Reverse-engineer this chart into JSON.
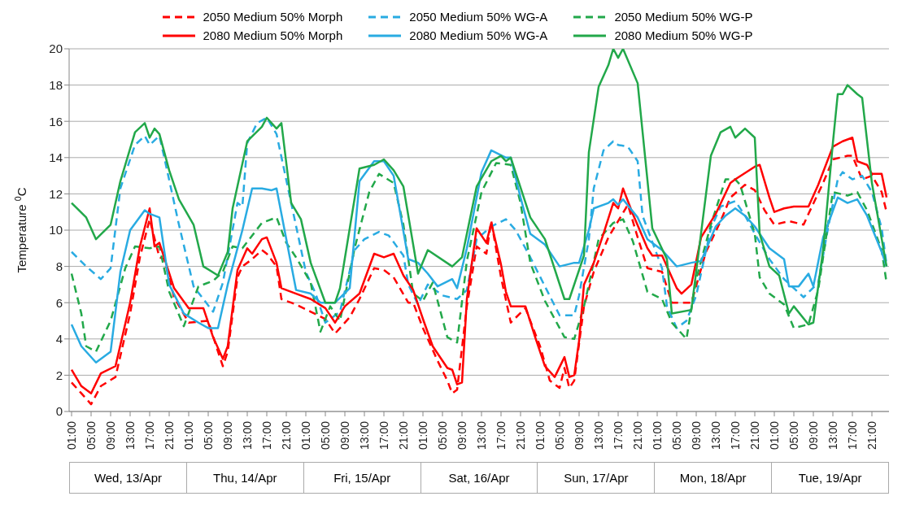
{
  "chart_data": {
    "type": "line",
    "ylabel": "Temperature $^{0}$C",
    "ylim": [
      0,
      20
    ],
    "yticks": [
      0,
      2,
      4,
      6,
      8,
      10,
      12,
      14,
      16,
      18,
      20
    ],
    "xlim": [
      "--04-13T00:30",
      "--04-20T00:30"
    ],
    "xticks": [
      {
        "value": "--04-13T01:00",
        "label": "01:00"
      },
      {
        "value": "--04-13T05:00",
        "label": "05:00"
      },
      {
        "value": "--04-13T09:00",
        "label": "09:00"
      },
      {
        "value": "--04-13T13:00",
        "label": "13:00"
      },
      {
        "value": "--04-13T17:00",
        "label": "17:00"
      },
      {
        "value": "--04-13T21:00",
        "label": "21:00"
      },
      {
        "value": "--04-14T01:00",
        "label": "01:00"
      },
      {
        "value": "--04-14T05:00",
        "label": "05:00"
      },
      {
        "value": "--04-14T09:00",
        "label": "09:00"
      },
      {
        "value": "--04-14T13:00",
        "label": "13:00"
      },
      {
        "value": "--04-14T17:00",
        "label": "17:00"
      },
      {
        "value": "--04-14T21:00",
        "label": "21:00"
      },
      {
        "value": "--04-15T01:00",
        "label": "01:00"
      },
      {
        "value": "--04-15T05:00",
        "label": "05:00"
      },
      {
        "value": "--04-15T09:00",
        "label": "09:00"
      },
      {
        "value": "--04-15T13:00",
        "label": "13:00"
      },
      {
        "value": "--04-15T17:00",
        "label": "17:00"
      },
      {
        "value": "--04-15T21:00",
        "label": "21:00"
      },
      {
        "value": "--04-16T01:00",
        "label": "01:00"
      },
      {
        "value": "--04-16T05:00",
        "label": "05:00"
      },
      {
        "value": "--04-16T09:00",
        "label": "09:00"
      },
      {
        "value": "--04-16T13:00",
        "label": "13:00"
      },
      {
        "value": "--04-16T17:00",
        "label": "17:00"
      },
      {
        "value": "--04-16T21:00",
        "label": "21:00"
      },
      {
        "value": "--04-17T01:00",
        "label": "01:00"
      },
      {
        "value": "--04-17T05:00",
        "label": "05:00"
      },
      {
        "value": "--04-17T09:00",
        "label": "09:00"
      },
      {
        "value": "--04-17T13:00",
        "label": "13:00"
      },
      {
        "value": "--04-17T17:00",
        "label": "17:00"
      },
      {
        "value": "--04-17T21:00",
        "label": "21:00"
      },
      {
        "value": "--04-18T01:00",
        "label": "01:00"
      },
      {
        "value": "--04-18T05:00",
        "label": "05:00"
      },
      {
        "value": "--04-18T09:00",
        "label": "09:00"
      },
      {
        "value": "--04-18T13:00",
        "label": "13:00"
      },
      {
        "value": "--04-18T17:00",
        "label": "17:00"
      },
      {
        "value": "--04-18T21:00",
        "label": "21:00"
      },
      {
        "value": "--04-19T01:00",
        "label": "01:00"
      },
      {
        "value": "--04-19T05:00",
        "label": "05:00"
      },
      {
        "value": "--04-19T09:00",
        "label": "09:00"
      },
      {
        "value": "--04-19T13:00",
        "label": "13:00"
      },
      {
        "value": "--04-19T17:00",
        "label": "17:00"
      },
      {
        "value": "--04-19T21:00",
        "label": "21:00"
      }
    ],
    "annotations": [
      "Wed, 13/Apr",
      "Thu, 14/Apr",
      "Fri, 15/Apr",
      "Sat, 16/Apr",
      "Sun, 17/Apr",
      "Mon, 18/Apr",
      "Tue, 19/Apr"
    ],
    "grid": "y",
    "legend": "top",
    "marker": "none",
    "series": [
      {
        "name": "2050 Medium 50% Morph",
        "color": "#ff0000",
        "line_style": "dashed",
        "x": [
          "--04-13T01:00",
          "--04-13T03:00",
          "--04-13T05:00",
          "--04-13T07:00",
          "--04-13T10:00",
          "--04-13T13:00",
          "--04-13T15:00",
          "--04-13T17:00",
          "--04-13T19:00",
          "--04-13T20:00",
          "--04-13T22:00",
          "--04-14T01:00",
          "--04-14T05:00",
          "--04-14T07:00",
          "--04-14T08:00",
          "--04-14T09:00",
          "--04-14T11:00",
          "--04-14T12:00",
          "--04-14T14:00",
          "--04-14T16:00",
          "--04-14T17:00",
          "--04-14T19:00",
          "--04-14T20:00",
          "--04-14T23:00",
          "--04-15T02:00",
          "--04-15T05:00",
          "--04-15T07:00",
          "--04-15T10:00",
          "--04-15T12:00",
          "--04-15T15:00",
          "--04-15T17:00",
          "--04-15T19:00",
          "--04-15T22:00",
          "--04-15T23:00",
          "--04-16T01:00",
          "--04-16T04:00",
          "--04-16T06:00",
          "--04-16T07:00",
          "--04-16T08:00",
          "--04-16T10:00",
          "--04-16T12:00",
          "--04-16T14:00",
          "--04-16T15:00",
          "--04-16T17:00",
          "--04-16T19:00",
          "--04-16T22:00",
          "--04-17T01:00",
          "--04-17T03:00",
          "--04-17T05:00",
          "--04-17T06:00",
          "--04-17T07:00",
          "--04-17T08:00",
          "--04-17T10:00",
          "--04-17T12:00",
          "--04-17T15:00",
          "--04-17T17:00",
          "--04-17T19:00",
          "--04-17T21:00",
          "--04-17T23:00",
          "--04-18T02:00",
          "--04-18T04:00",
          "--04-18T06:00",
          "--04-18T08:00",
          "--04-18T11:00",
          "--04-18T14:00",
          "--04-18T16:00",
          "--04-18T19:00",
          "--04-18T21:00",
          "--04-18T23:00",
          "--04-19T01:00",
          "--04-19T04:00",
          "--04-19T07:00",
          "--04-19T08:00",
          "--04-19T11:00",
          "--04-19T13:00",
          "--04-19T16:00",
          "--04-19T17:00",
          "--04-19T19:00",
          "--04-19T21:00",
          "--04-19T23:00",
          "--04-20T00:00"
        ],
        "values": [
          1.6,
          1.0,
          0.4,
          1.4,
          1.9,
          5.4,
          8.5,
          10.6,
          8.5,
          8.4,
          6.3,
          4.9,
          5.0,
          3.3,
          2.5,
          3.3,
          7.4,
          8.0,
          8.4,
          8.9,
          8.7,
          8.0,
          6.2,
          5.9,
          5.5,
          5.1,
          4.3,
          5.2,
          6.2,
          7.9,
          7.8,
          7.4,
          6.0,
          6.0,
          4.6,
          2.8,
          1.7,
          1.0,
          1.2,
          5.8,
          9.1,
          8.7,
          10.5,
          7.4,
          4.9,
          5.7,
          3.6,
          1.7,
          1.3,
          2.4,
          1.3,
          1.7,
          5.8,
          7.7,
          9.6,
          10.5,
          11.4,
          9.6,
          7.9,
          7.7,
          6.0,
          6.0,
          6.0,
          8.8,
          10.5,
          11.8,
          12.5,
          12.2,
          11.1,
          10.3,
          10.5,
          10.3,
          10.9,
          12.6,
          13.9,
          14.1,
          14.1,
          12.8,
          13.0,
          12.1,
          11.0
        ]
      },
      {
        "name": "2050 Medium 50% WG-A",
        "color": "#29abe2",
        "line_style": "dashed",
        "x": [
          "--04-13T01:00",
          "--04-13T04:00",
          "--04-13T07:00",
          "--04-13T09:00",
          "--04-13T11:00",
          "--04-13T14:00",
          "--04-13T16:00",
          "--04-13T17:00",
          "--04-13T19:00",
          "--04-13T20:00",
          "--04-13T23:00",
          "--04-14T02:00",
          "--04-14T06:00",
          "--04-14T08:00",
          "--04-14T11:00",
          "--04-14T12:00",
          "--04-14T13:00",
          "--04-14T15:00",
          "--04-14T17:00",
          "--04-14T19:00",
          "--04-14T22:00",
          "--04-15T01:00",
          "--04-15T03:00",
          "--04-15T05:00",
          "--04-15T08:00",
          "--04-15T11:00",
          "--04-15T13:00",
          "--04-15T16:00",
          "--04-15T18:00",
          "--04-15T21:00",
          "--04-15T22:00",
          "--04-16T00:00",
          "--04-16T02:00",
          "--04-16T05:00",
          "--04-16T08:00",
          "--04-16T10:00",
          "--04-16T12:00",
          "--04-16T15:00",
          "--04-16T18:00",
          "--04-16T20:00",
          "--04-16T23:00",
          "--04-17T02:00",
          "--04-17T05:00",
          "--04-17T08:00",
          "--04-17T09:00",
          "--04-17T11:00",
          "--04-17T12:00",
          "--04-17T14:00",
          "--04-17T16:00",
          "--04-17T17:00",
          "--04-17T19:00",
          "--04-17T21:00",
          "--04-17T22:00",
          "--04-18T02:00",
          "--04-18T03:00",
          "--04-18T05:00",
          "--04-18T07:00",
          "--04-18T09:00",
          "--04-18T12:00",
          "--04-18T14:00",
          "--04-18T17:00",
          "--04-18T19:00",
          "--04-18T21:00",
          "--04-19T00:00",
          "--04-19T03:00",
          "--04-19T05:00",
          "--04-19T07:00",
          "--04-19T10:00",
          "--04-19T12:00",
          "--04-19T14:00",
          "--04-19T15:00",
          "--04-19T17:00",
          "--04-19T19:00",
          "--04-19T21:00",
          "--04-19T23:00",
          "--04-20T00:00"
        ],
        "values": [
          8.8,
          8.0,
          7.3,
          7.9,
          12.3,
          14.7,
          15.2,
          14.7,
          15.2,
          14.0,
          10.3,
          6.9,
          5.5,
          7.1,
          11.5,
          11.3,
          14.8,
          15.9,
          16.2,
          15.3,
          11.5,
          7.7,
          6.5,
          4.9,
          5.5,
          8.9,
          9.5,
          9.9,
          9.7,
          8.6,
          7.0,
          5.9,
          7.0,
          6.4,
          6.2,
          6.7,
          9.5,
          10.2,
          10.6,
          10.0,
          8.5,
          6.9,
          5.3,
          5.3,
          6.4,
          9.5,
          12.3,
          14.4,
          14.9,
          14.7,
          14.6,
          13.8,
          10.8,
          7.9,
          5.8,
          4.6,
          5.0,
          6.4,
          10.1,
          11.3,
          11.6,
          10.8,
          9.8,
          8.4,
          7.3,
          6.8,
          6.3,
          7.1,
          10.1,
          12.8,
          13.2,
          12.8,
          13.0,
          12.1,
          10.1,
          8.1
        ]
      },
      {
        "name": "2050 Medium 50% WG-P",
        "color": "#22a84a",
        "line_style": "dashed",
        "x": [
          "--04-13T01:00",
          "--04-13T03:00",
          "--04-13T04:00",
          "--04-13T06:00",
          "--04-13T09:00",
          "--04-13T12:00",
          "--04-13T14:00",
          "--04-13T17:00",
          "--04-13T19:00",
          "--04-13T21:00",
          "--04-14T00:00",
          "--04-14T03:00",
          "--04-14T06:00",
          "--04-14T08:00",
          "--04-14T10:00",
          "--04-14T12:00",
          "--04-14T16:00",
          "--04-14T19:00",
          "--04-14T21:00",
          "--04-14T23:00",
          "--04-15T02:00",
          "--04-15T04:00",
          "--04-15T06:00",
          "--04-15T08:00",
          "--04-15T11:00",
          "--04-15T14:00",
          "--04-15T16:00",
          "--04-15T19:00",
          "--04-15T21:00",
          "--04-15T23:00",
          "--04-16T01:00",
          "--04-16T03:00",
          "--04-16T06:00",
          "--04-16T08:00",
          "--04-16T10:00",
          "--04-16T13:00",
          "--04-16T16:00",
          "--04-16T19:00",
          "--04-16T21:00",
          "--04-16T23:00",
          "--04-17T02:00",
          "--04-17T06:00",
          "--04-17T08:00",
          "--04-17T10:00",
          "--04-17T11:00",
          "--04-17T13:00",
          "--04-17T16:00",
          "--04-17T18:00",
          "--04-17T20:00",
          "--04-17T23:00",
          "--04-18T02:00",
          "--04-18T04:00",
          "--04-18T07:00",
          "--04-18T09:00",
          "--04-18T12:00",
          "--04-18T15:00",
          "--04-18T17:00",
          "--04-18T18:00",
          "--04-18T21:00",
          "--04-18T22:00",
          "--04-19T00:00",
          "--04-19T03:00",
          "--04-19T05:00",
          "--04-19T08:00",
          "--04-19T10:00",
          "--04-19T13:00",
          "--04-19T16:00",
          "--04-19T18:00",
          "--04-19T20:00",
          "--04-19T23:00",
          "--04-20T00:00"
        ],
        "values": [
          7.6,
          5.4,
          3.6,
          3.3,
          5.0,
          7.9,
          9.1,
          9.0,
          9.1,
          6.6,
          4.7,
          6.9,
          7.2,
          7.7,
          9.1,
          9.0,
          10.4,
          10.7,
          9.3,
          8.5,
          7.1,
          4.4,
          5.8,
          5.0,
          9.0,
          12.1,
          13.1,
          12.6,
          10.3,
          6.5,
          6.1,
          7.1,
          4.1,
          3.8,
          8.3,
          12.1,
          13.7,
          13.6,
          11.5,
          8.2,
          6.1,
          4.1,
          4.0,
          5.8,
          7.0,
          9.5,
          10.4,
          10.6,
          9.4,
          6.6,
          6.2,
          4.9,
          4.0,
          7.3,
          10.3,
          12.8,
          12.8,
          12.5,
          9.8,
          7.4,
          6.5,
          5.9,
          4.6,
          4.8,
          6.7,
          12.1,
          11.9,
          12.1,
          11.1,
          8.9,
          7.1
        ]
      },
      {
        "name": "2080 Medium 50% Morph",
        "color": "#ff0000",
        "line_style": "solid",
        "x": [
          "--04-13T01:00",
          "--04-13T03:00",
          "--04-13T05:00",
          "--04-13T07:00",
          "--04-13T10:00",
          "--04-13T13:00",
          "--04-13T15:00",
          "--04-13T17:00",
          "--04-13T18:00",
          "--04-13T19:00",
          "--04-13T22:00",
          "--04-14T01:00",
          "--04-14T04:00",
          "--04-14T06:00",
          "--04-14T08:00",
          "--04-14T09:00",
          "--04-14T11:00",
          "--04-14T13:00",
          "--04-14T14:00",
          "--04-14T16:00",
          "--04-14T17:00",
          "--04-14T19:00",
          "--04-14T20:00",
          "--04-14T23:00",
          "--04-15T02:00",
          "--04-15T05:00",
          "--04-15T07:00",
          "--04-15T09:00",
          "--04-15T12:00",
          "--04-15T15:00",
          "--04-15T17:00",
          "--04-15T19:00",
          "--04-15T21:00",
          "--04-15T23:00",
          "--04-16T01:00",
          "--04-16T03:00",
          "--04-16T06:00",
          "--04-16T07:00",
          "--04-16T08:00",
          "--04-16T09:00",
          "--04-16T10:00",
          "--04-16T12:00",
          "--04-16T14:00",
          "--04-16T15:00",
          "--04-16T17:00",
          "--04-16T18:00",
          "--04-16T19:00",
          "--04-16T22:00",
          "--04-17T00:00",
          "--04-17T02:00",
          "--04-17T04:00",
          "--04-17T06:00",
          "--04-17T07:00",
          "--04-17T08:00",
          "--04-17T09:00",
          "--04-17T10:00",
          "--04-17T12:00",
          "--04-17T14:00",
          "--04-17T16:00",
          "--04-17T17:00",
          "--04-17T18:00",
          "--04-17T20:00",
          "--04-17T23:00",
          "--04-18T00:00",
          "--04-18T02:00",
          "--04-18T05:00",
          "--04-18T06:00",
          "--04-18T08:00",
          "--04-18T10:00",
          "--04-18T13:00",
          "--04-18T16:00",
          "--04-18T17:00",
          "--04-18T21:00",
          "--04-18T22:00",
          "--04-19T00:00",
          "--04-19T01:00",
          "--04-19T03:00",
          "--04-19T05:00",
          "--04-19T08:00",
          "--04-19T10:00",
          "--04-19T13:00",
          "--04-19T15:00",
          "--04-19T17:00",
          "--04-19T18:00",
          "--04-19T20:00",
          "--04-19T21:00",
          "--04-19T23:00",
          "--04-20T00:00"
        ],
        "values": [
          2.3,
          1.4,
          1.0,
          2.1,
          2.5,
          6.0,
          9.1,
          11.2,
          9.1,
          9.3,
          6.8,
          5.7,
          5.7,
          4.1,
          2.9,
          3.6,
          7.8,
          9.0,
          8.7,
          9.5,
          9.6,
          8.2,
          6.8,
          6.5,
          6.2,
          5.7,
          4.9,
          5.8,
          6.5,
          8.7,
          8.5,
          8.7,
          7.5,
          6.7,
          5.1,
          3.6,
          2.4,
          2.3,
          1.5,
          1.6,
          6.2,
          10.1,
          9.3,
          10.4,
          8.1,
          6.6,
          5.8,
          5.8,
          4.1,
          2.5,
          1.9,
          3.0,
          1.9,
          2.0,
          3.9,
          7.0,
          8.2,
          9.8,
          11.5,
          11.2,
          12.3,
          10.9,
          9.0,
          8.6,
          8.6,
          6.8,
          6.5,
          7.0,
          9.6,
          10.9,
          12.6,
          12.8,
          13.5,
          13.6,
          11.8,
          11.0,
          11.2,
          11.3,
          11.3,
          12.5,
          14.6,
          14.9,
          15.1,
          13.8,
          13.6,
          13.1,
          13.1,
          11.8
        ]
      },
      {
        "name": "2080 Medium 50% WG-A",
        "color": "#29abe2",
        "line_style": "solid",
        "x": [
          "--04-13T01:00",
          "--04-13T03:00",
          "--04-13T06:00",
          "--04-13T09:00",
          "--04-13T11:00",
          "--04-13T13:00",
          "--04-13T16:00",
          "--04-13T17:00",
          "--04-13T19:00",
          "--04-13T21:00",
          "--04-14T00:00",
          "--04-14T03:00",
          "--04-14T05:00",
          "--04-14T07:00",
          "--04-14T09:00",
          "--04-14T12:00",
          "--04-14T14:00",
          "--04-14T16:00",
          "--04-14T18:00",
          "--04-14T19:00",
          "--04-14T23:00",
          "--04-15T02:00",
          "--04-15T04:00",
          "--04-15T07:00",
          "--04-15T10:00",
          "--04-15T12:00",
          "--04-15T15:00",
          "--04-15T17:00",
          "--04-15T19:00",
          "--04-15T22:00",
          "--04-16T00:00",
          "--04-16T02:00",
          "--04-16T04:00",
          "--04-16T07:00",
          "--04-16T08:00",
          "--04-16T10:00",
          "--04-16T13:00",
          "--04-16T15:00",
          "--04-16T18:00",
          "--04-16T19:00",
          "--04-16T21:00",
          "--04-16T23:00",
          "--04-17T02:00",
          "--04-17T05:00",
          "--04-17T08:00",
          "--04-17T09:00",
          "--04-17T11:00",
          "--04-17T12:00",
          "--04-17T15:00",
          "--04-17T16:00",
          "--04-17T17:00",
          "--04-17T18:00",
          "--04-17T21:00",
          "--04-17T23:00",
          "--04-18T02:00",
          "--04-18T05:00",
          "--04-18T08:00",
          "--04-18T10:00",
          "--04-18T13:00",
          "--04-18T15:00",
          "--04-18T17:00",
          "--04-18T19:00",
          "--04-18T21:00",
          "--04-19T00:00",
          "--04-19T03:00",
          "--04-19T04:00",
          "--04-19T06:00",
          "--04-19T08:00",
          "--04-19T09:00",
          "--04-19T11:00",
          "--04-19T14:00",
          "--04-19T16:00",
          "--04-19T18:00",
          "--04-19T20:00",
          "--04-19T23:00",
          "--04-20T00:00"
        ],
        "values": [
          4.8,
          3.6,
          2.7,
          3.3,
          7.7,
          10.0,
          11.1,
          10.9,
          10.7,
          7.0,
          5.4,
          4.9,
          4.6,
          4.6,
          7.0,
          10.0,
          12.3,
          12.3,
          12.2,
          12.3,
          6.7,
          6.5,
          6.0,
          6.0,
          6.8,
          12.7,
          13.8,
          13.8,
          13.0,
          8.4,
          8.2,
          7.6,
          6.9,
          7.3,
          6.8,
          9.0,
          13.2,
          14.4,
          14.0,
          14.0,
          11.8,
          9.8,
          9.2,
          8.0,
          8.2,
          8.2,
          10.0,
          11.2,
          11.5,
          11.7,
          11.4,
          11.7,
          10.7,
          9.5,
          8.9,
          8.0,
          8.2,
          8.3,
          10.2,
          10.8,
          11.2,
          10.8,
          10.2,
          9.0,
          8.4,
          6.9,
          6.9,
          7.6,
          6.9,
          9.6,
          11.8,
          11.5,
          11.7,
          10.8,
          8.8,
          8.0
        ]
      },
      {
        "name": "2080 Medium 50% WG-P",
        "color": "#22a84a",
        "line_style": "solid",
        "x": [
          "--04-13T01:00",
          "--04-13T04:00",
          "--04-13T06:00",
          "--04-13T09:00",
          "--04-13T11:00",
          "--04-13T14:00",
          "--04-13T16:00",
          "--04-13T17:00",
          "--04-13T18:00",
          "--04-13T19:00",
          "--04-13T21:00",
          "--04-13T23:00",
          "--04-14T02:00",
          "--04-14T04:00",
          "--04-14T07:00",
          "--04-14T09:00",
          "--04-14T10:00",
          "--04-14T13:00",
          "--04-14T16:00",
          "--04-14T17:00",
          "--04-14T19:00",
          "--04-14T20:00",
          "--04-14T22:00",
          "--04-15T00:00",
          "--04-15T02:00",
          "--04-15T05:00",
          "--04-15T07:00",
          "--04-15T08:00",
          "--04-15T12:00",
          "--04-15T15:00",
          "--04-15T17:00",
          "--04-15T19:00",
          "--04-15T21:00",
          "--04-16T00:00",
          "--04-16T02:00",
          "--04-16T07:00",
          "--04-16T09:00",
          "--04-16T12:00",
          "--04-16T15:00",
          "--04-16T17:00",
          "--04-16T18:00",
          "--04-16T19:00",
          "--04-16T23:00",
          "--04-17T02:00",
          "--04-17T06:00",
          "--04-17T07:00",
          "--04-17T10:00",
          "--04-17T11:00",
          "--04-17T13:00",
          "--04-17T15:00",
          "--04-17T16:00",
          "--04-17T17:00",
          "--04-17T18:00",
          "--04-17T21:00",
          "--04-18T00:00",
          "--04-18T03:00",
          "--04-18T04:00",
          "--04-18T08:00",
          "--04-18T12:00",
          "--04-18T14:00",
          "--04-18T16:00",
          "--04-18T17:00",
          "--04-18T19:00",
          "--04-18T21:00",
          "--04-18T22:00",
          "--04-19T00:00",
          "--04-19T02:00",
          "--04-19T04:00",
          "--04-19T05:00",
          "--04-19T08:00",
          "--04-19T09:00",
          "--04-19T11:00",
          "--04-19T13:00",
          "--04-19T14:00",
          "--04-19T15:00",
          "--04-19T16:00",
          "--04-19T18:00",
          "--04-19T19:00",
          "--04-19T21:00",
          "--04-20T00:00"
        ],
        "values": [
          11.5,
          10.7,
          9.5,
          10.3,
          12.7,
          15.4,
          15.9,
          15.1,
          15.6,
          15.3,
          13.3,
          11.7,
          10.3,
          8.0,
          7.5,
          8.8,
          11.2,
          14.9,
          15.7,
          16.2,
          15.6,
          15.9,
          11.5,
          10.6,
          8.2,
          6.0,
          6.0,
          6.8,
          13.4,
          13.6,
          13.9,
          13.3,
          12.4,
          7.6,
          8.9,
          8.0,
          8.5,
          12.4,
          13.8,
          14.1,
          13.8,
          14.0,
          10.7,
          9.5,
          6.2,
          6.2,
          8.6,
          14.3,
          17.9,
          19.1,
          20.0,
          19.5,
          20.0,
          18.1,
          10.1,
          8.4,
          5.4,
          5.6,
          14.1,
          15.4,
          15.7,
          15.1,
          15.6,
          15.1,
          9.8,
          8.0,
          7.5,
          5.4,
          5.8,
          4.8,
          4.9,
          8.9,
          14.8,
          17.5,
          17.5,
          18.0,
          17.5,
          17.3,
          12.6,
          8.0
        ]
      }
    ]
  }
}
